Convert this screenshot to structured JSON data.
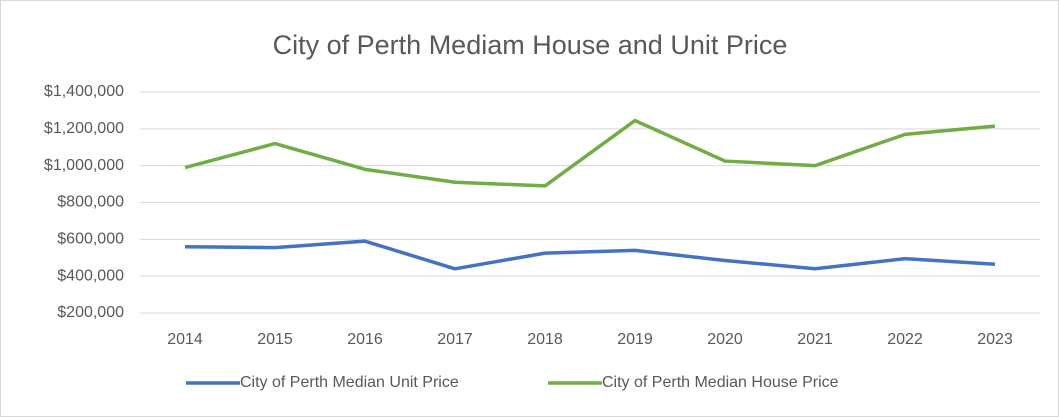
{
  "chart_data": {
    "type": "line",
    "title": "City of Perth Mediam House and Unit Price",
    "categories": [
      "2014",
      "2015",
      "2016",
      "2017",
      "2018",
      "2019",
      "2020",
      "2021",
      "2022",
      "2023"
    ],
    "series": [
      {
        "name": "City of Perth Median Unit Price",
        "color": "#4472c4",
        "values": [
          560000,
          555000,
          590000,
          440000,
          525000,
          540000,
          485000,
          440000,
          495000,
          465000
        ]
      },
      {
        "name": "City of Perth Median House Price",
        "color": "#70ad47",
        "values": [
          990000,
          1120000,
          980000,
          910000,
          890000,
          1245000,
          1025000,
          1000000,
          1170000,
          1215000
        ]
      }
    ],
    "ylim": [
      200000,
      1400000
    ],
    "yticks": [
      {
        "value": 200000,
        "label": "$200,000"
      },
      {
        "value": 400000,
        "label": "$400,000"
      },
      {
        "value": 600000,
        "label": "$600,000"
      },
      {
        "value": 800000,
        "label": "$800,000"
      },
      {
        "value": 1000000,
        "label": "$1,000,000"
      },
      {
        "value": 1200000,
        "label": "$1,200,000"
      },
      {
        "value": 1400000,
        "label": "$1,400,000"
      }
    ],
    "grid": true,
    "legend": "bottom"
  }
}
